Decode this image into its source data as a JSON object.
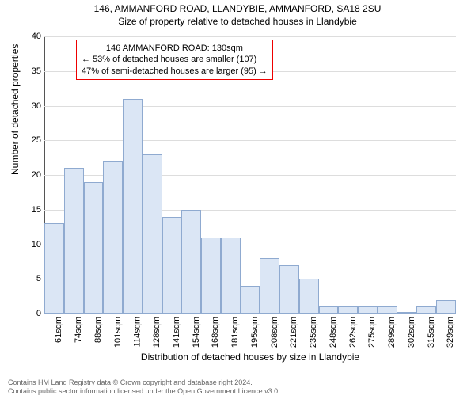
{
  "title_main": "146, AMMANFORD ROAD, LLANDYBIE, AMMANFORD, SA18 2SU",
  "title_sub": "Size of property relative to detached houses in Llandybie",
  "y_label": "Number of detached properties",
  "x_label": "Distribution of detached houses by size in Llandybie",
  "footnote_line1": "Contains HM Land Registry data © Crown copyright and database right 2024.",
  "footnote_line2": "Contains public sector information licensed under the Open Government Licence v3.0.",
  "chart": {
    "type": "bar",
    "ylim": [
      0,
      40
    ],
    "ytick_step": 5,
    "yticks": [
      0,
      5,
      10,
      15,
      20,
      25,
      30,
      35,
      40
    ],
    "background_color": "#ffffff",
    "grid_color": "#dddddd",
    "axis_color": "#555555",
    "bar_fill": "#dbe6f5",
    "bar_stroke": "#8faad0",
    "bar_width_ratio": 1.0,
    "marker_color": "#ee0000",
    "categories": [
      "61sqm",
      "74sqm",
      "88sqm",
      "101sqm",
      "114sqm",
      "128sqm",
      "141sqm",
      "154sqm",
      "168sqm",
      "181sqm",
      "195sqm",
      "208sqm",
      "221sqm",
      "235sqm",
      "248sqm",
      "262sqm",
      "275sqm",
      "289sqm",
      "302sqm",
      "315sqm",
      "329sqm"
    ],
    "values": [
      13,
      21,
      19,
      22,
      31,
      23,
      14,
      15,
      11,
      11,
      4,
      8,
      7,
      5,
      1,
      1,
      1,
      1,
      0,
      1,
      2
    ],
    "marker_index": 5,
    "annotation": {
      "line1": "146 AMMANFORD ROAD: 130sqm",
      "line2": "← 53% of detached houses are smaller (107)",
      "line3": "47% of semi-detached houses are larger (95) →"
    }
  }
}
